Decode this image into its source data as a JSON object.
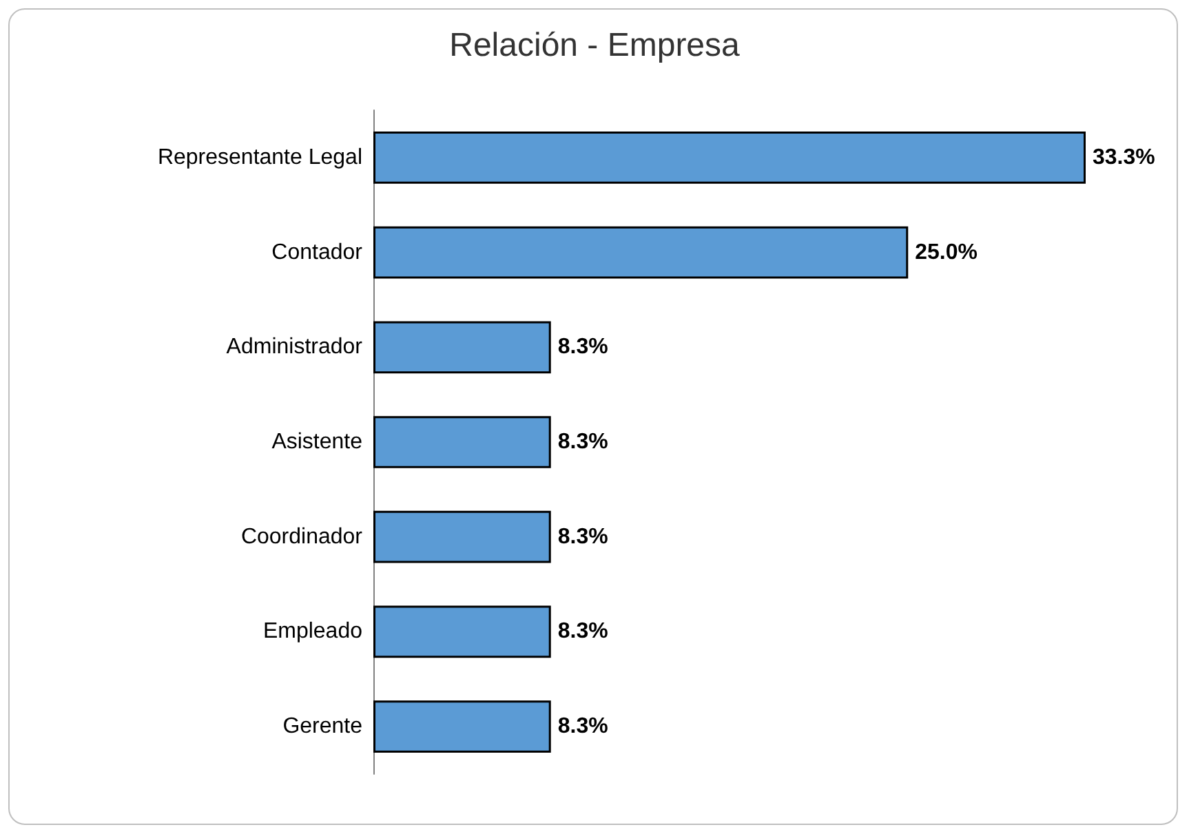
{
  "chart_data": {
    "type": "bar",
    "orientation": "horizontal",
    "title": "Relación - Empresa",
    "categories": [
      "Representante Legal",
      "Contador",
      "Administrador",
      "Asistente",
      "Coordinador",
      "Empleado",
      "Gerente"
    ],
    "values": [
      33.3,
      25.0,
      8.3,
      8.3,
      8.3,
      8.3,
      8.3
    ],
    "value_labels": [
      "33.3%",
      "25.0%",
      "8.3%",
      "8.3%",
      "8.3%",
      "8.3%",
      "8.3%"
    ],
    "color": "#5b9bd5"
  }
}
